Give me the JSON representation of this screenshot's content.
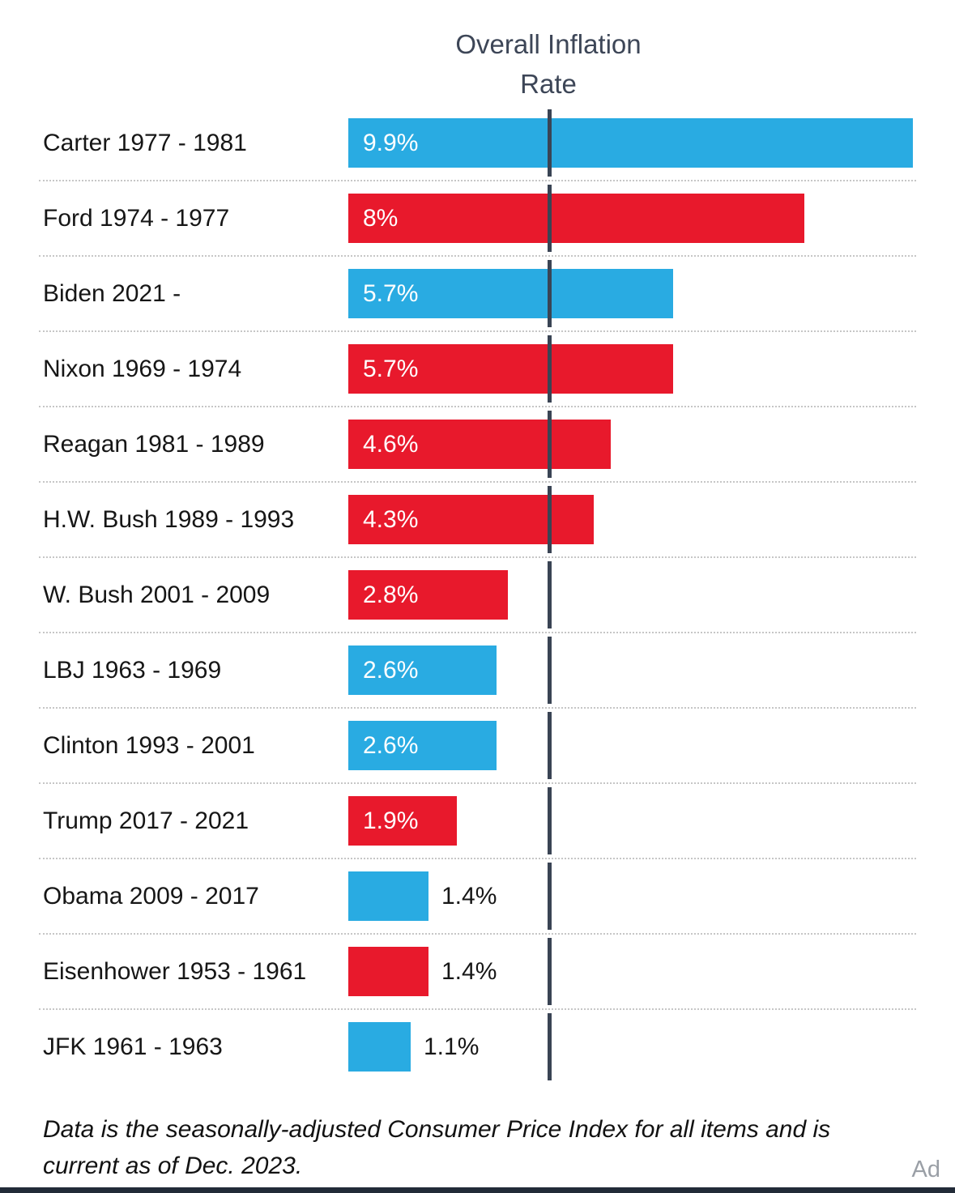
{
  "header": {
    "title_line1": "Overall Inflation",
    "title_line2": "Rate"
  },
  "chart_data": {
    "type": "bar",
    "orientation": "horizontal",
    "title": "Overall Inflation Rate",
    "x_max": 9.9,
    "reference_line_value": 3.5,
    "colors": {
      "democrat": "#29ABE2",
      "republican": "#E8192C",
      "reference_line": "#3a4454"
    },
    "bars": [
      {
        "label": "Carter 1977 - 1981",
        "value": 9.9,
        "value_label": "9.9%",
        "party": "democrat",
        "value_position": "inside"
      },
      {
        "label": "Ford 1974 - 1977",
        "value": 8,
        "value_label": "8%",
        "party": "republican",
        "value_position": "inside"
      },
      {
        "label": "Biden 2021 -",
        "value": 5.7,
        "value_label": "5.7%",
        "party": "democrat",
        "value_position": "inside"
      },
      {
        "label": "Nixon 1969 - 1974",
        "value": 5.7,
        "value_label": "5.7%",
        "party": "republican",
        "value_position": "inside"
      },
      {
        "label": "Reagan 1981 - 1989",
        "value": 4.6,
        "value_label": "4.6%",
        "party": "republican",
        "value_position": "inside"
      },
      {
        "label": "H.W. Bush 1989 - 1993",
        "value": 4.3,
        "value_label": "4.3%",
        "party": "republican",
        "value_position": "inside"
      },
      {
        "label": "W. Bush 2001 - 2009",
        "value": 2.8,
        "value_label": "2.8%",
        "party": "republican",
        "value_position": "inside"
      },
      {
        "label": "LBJ 1963 - 1969",
        "value": 2.6,
        "value_label": "2.6%",
        "party": "democrat",
        "value_position": "inside"
      },
      {
        "label": "Clinton 1993 - 2001",
        "value": 2.6,
        "value_label": "2.6%",
        "party": "democrat",
        "value_position": "inside"
      },
      {
        "label": "Trump 2017 - 2021",
        "value": 1.9,
        "value_label": "1.9%",
        "party": "republican",
        "value_position": "inside"
      },
      {
        "label": "Obama 2009 - 2017",
        "value": 1.4,
        "value_label": "1.4%",
        "party": "democrat",
        "value_position": "outside"
      },
      {
        "label": "Eisenhower 1953 - 1961",
        "value": 1.4,
        "value_label": "1.4%",
        "party": "republican",
        "value_position": "outside"
      },
      {
        "label": "JFK 1961 - 1963",
        "value": 1.1,
        "value_label": "1.1%",
        "party": "democrat",
        "value_position": "outside"
      }
    ]
  },
  "footer": {
    "note": "Data is the seasonally-adjusted Consumer Price Index for all items and is current as of Dec. 2023.",
    "ad_label": "Ad"
  }
}
